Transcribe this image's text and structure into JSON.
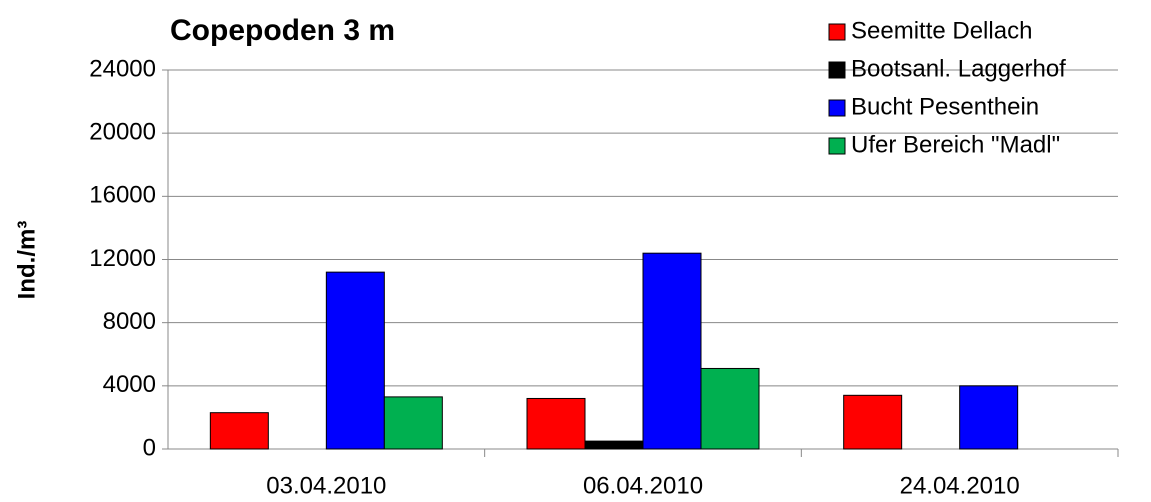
{
  "chart_data": {
    "type": "bar",
    "title": "Copepoden 3 m",
    "y_label": "Ind./m³",
    "categories": [
      "03.04.2010",
      "06.04.2010",
      "24.04.2010"
    ],
    "series": [
      {
        "name": "Seemitte Dellach",
        "color": "#ff0000",
        "values": [
          2300,
          3200,
          3400
        ]
      },
      {
        "name": "Bootsanl. Laggerhof",
        "color": "#000000",
        "values": [
          null,
          500,
          null
        ]
      },
      {
        "name": "Bucht Pesenthein",
        "color": "#0000ff",
        "values": [
          11200,
          12400,
          4000
        ]
      },
      {
        "name": "Ufer Bereich \"Madl\"",
        "color": "#00b050",
        "values": [
          3300,
          5100,
          null
        ]
      }
    ],
    "ylim": [
      0,
      24000
    ],
    "yticks": [
      0,
      4000,
      8000,
      12000,
      16000,
      20000,
      24000
    ],
    "grid": true,
    "legend": "upper right"
  }
}
